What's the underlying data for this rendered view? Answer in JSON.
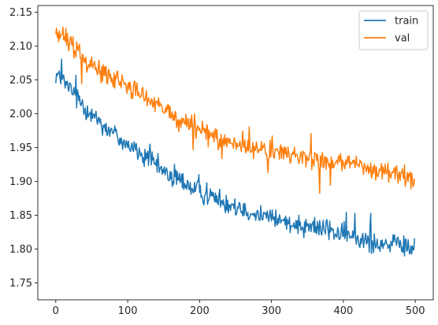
{
  "chart_data": {
    "type": "line",
    "title": "",
    "xlabel": "",
    "ylabel": "",
    "xlim": [
      -25,
      525
    ],
    "ylim": [
      1.725,
      2.16
    ],
    "x_ticks": [
      0,
      100,
      200,
      300,
      400,
      500
    ],
    "y_ticks": [
      1.75,
      1.8,
      1.85,
      1.9,
      1.95,
      2.0,
      2.05,
      2.1,
      2.15
    ],
    "x_tick_labels": [
      "0",
      "100",
      "200",
      "300",
      "400",
      "500"
    ],
    "y_tick_labels": [
      "1.75",
      "1.80",
      "1.85",
      "1.90",
      "1.95",
      "2.00",
      "2.05",
      "2.10",
      "2.15"
    ],
    "grid": false,
    "legend_position": "top-right",
    "series_keyframes": {
      "x": [
        0,
        25,
        50,
        75,
        100,
        125,
        150,
        175,
        200,
        225,
        250,
        275,
        300,
        325,
        350,
        375,
        400,
        425,
        450,
        475,
        500
      ],
      "train": [
        2.06,
        2.03,
        2.0,
        1.975,
        1.955,
        1.935,
        1.915,
        1.9,
        1.885,
        1.875,
        1.865,
        1.855,
        1.845,
        1.84,
        1.835,
        1.83,
        1.82,
        1.815,
        1.81,
        1.805,
        1.8
      ],
      "val": [
        2.12,
        2.1,
        2.075,
        2.055,
        2.04,
        2.025,
        2.005,
        1.99,
        1.975,
        1.965,
        1.955,
        1.95,
        1.945,
        1.94,
        1.935,
        1.93,
        1.925,
        1.92,
        1.915,
        1.912,
        1.905
      ]
    },
    "series": [
      {
        "name": "train",
        "color": "#1f77b4",
        "x_start": 0,
        "x_end": 499
      },
      {
        "name": "val",
        "color": "#ff7f0e",
        "x_start": 0,
        "x_end": 499
      }
    ],
    "legend": {
      "entries": [
        "train",
        "val"
      ]
    }
  }
}
